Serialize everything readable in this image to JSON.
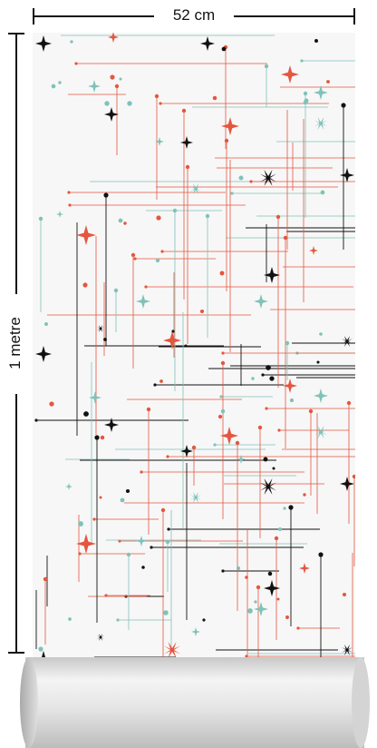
{
  "dimensions": {
    "width_label": "52 cm",
    "height_label": "1 metre"
  },
  "colors": {
    "coral": "#e5563f",
    "black": "#111111",
    "teal": "#7fc2b8",
    "paper": "#f7f7f7"
  }
}
